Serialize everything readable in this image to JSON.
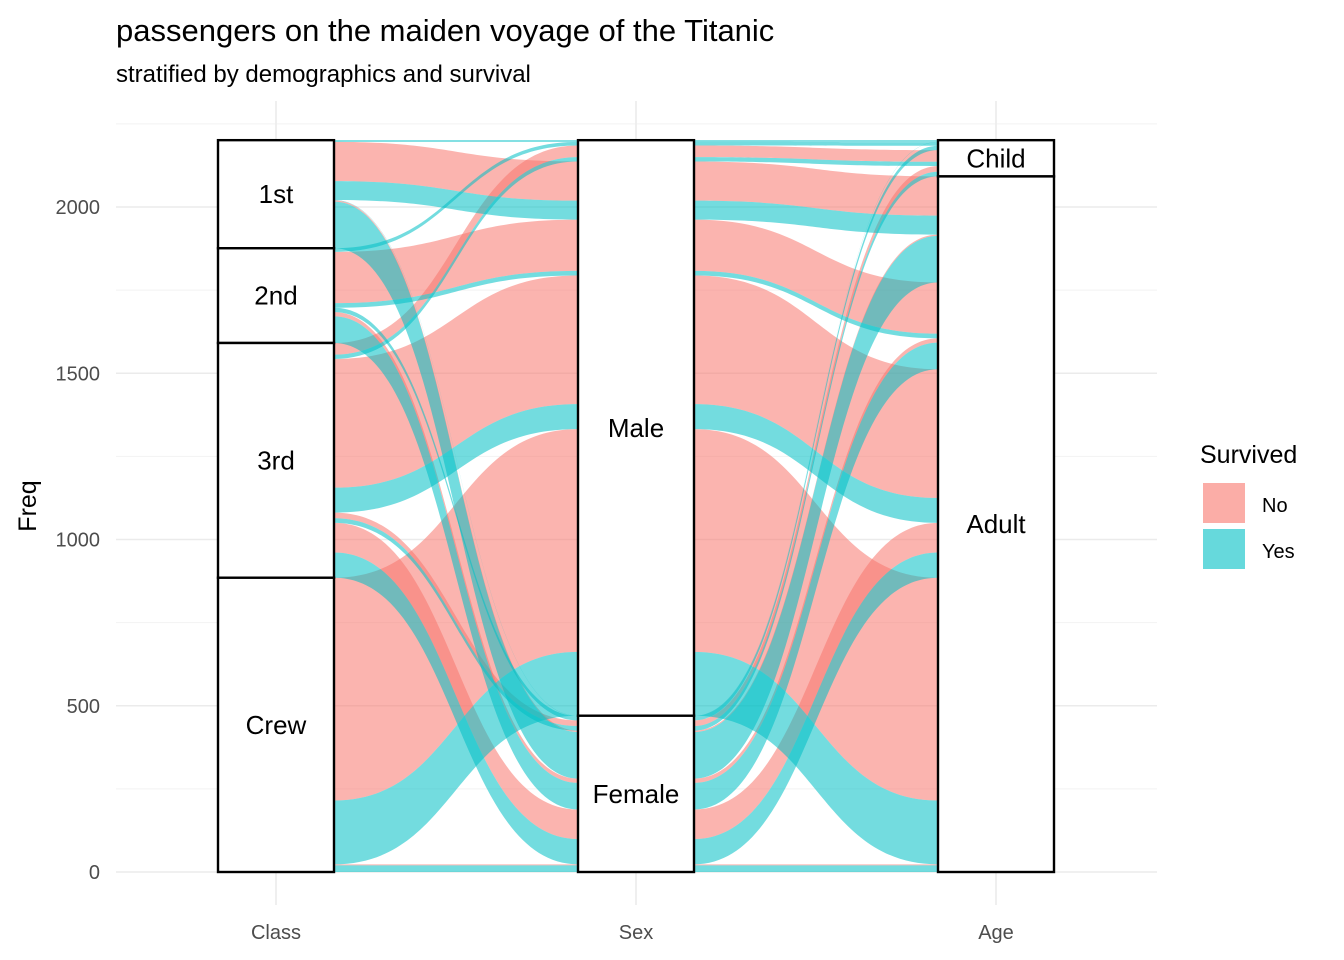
{
  "chart_data": {
    "type": "alluvial",
    "title": "passengers on the maiden voyage of the Titanic",
    "subtitle": "stratified by demographics and survival",
    "ylabel": "Freq",
    "xlabel": "",
    "ylim": [
      0,
      2201
    ],
    "yticks": [
      0,
      500,
      1000,
      1500,
      2000
    ],
    "grid": true,
    "axes": [
      "Class",
      "Sex",
      "Age"
    ],
    "strata": {
      "Class": [
        "1st",
        "2nd",
        "3rd",
        "Crew"
      ],
      "Sex": [
        "Male",
        "Female"
      ],
      "Age": [
        "Child",
        "Adult"
      ]
    },
    "fill_by": "Survived",
    "legend": {
      "title": "Survived",
      "position": "right",
      "entries": [
        {
          "label": "No",
          "color": "#F8766D"
        },
        {
          "label": "Yes",
          "color": "#00BFC4"
        }
      ]
    },
    "flows": [
      {
        "Class": "1st",
        "Sex": "Male",
        "Age": "Child",
        "Survived": "No",
        "Freq": 0
      },
      {
        "Class": "2nd",
        "Sex": "Male",
        "Age": "Child",
        "Survived": "No",
        "Freq": 0
      },
      {
        "Class": "3rd",
        "Sex": "Male",
        "Age": "Child",
        "Survived": "No",
        "Freq": 35
      },
      {
        "Class": "Crew",
        "Sex": "Male",
        "Age": "Child",
        "Survived": "No",
        "Freq": 0
      },
      {
        "Class": "1st",
        "Sex": "Female",
        "Age": "Child",
        "Survived": "No",
        "Freq": 0
      },
      {
        "Class": "2nd",
        "Sex": "Female",
        "Age": "Child",
        "Survived": "No",
        "Freq": 0
      },
      {
        "Class": "3rd",
        "Sex": "Female",
        "Age": "Child",
        "Survived": "No",
        "Freq": 17
      },
      {
        "Class": "Crew",
        "Sex": "Female",
        "Age": "Child",
        "Survived": "No",
        "Freq": 0
      },
      {
        "Class": "1st",
        "Sex": "Male",
        "Age": "Adult",
        "Survived": "No",
        "Freq": 118
      },
      {
        "Class": "2nd",
        "Sex": "Male",
        "Age": "Adult",
        "Survived": "No",
        "Freq": 154
      },
      {
        "Class": "3rd",
        "Sex": "Male",
        "Age": "Adult",
        "Survived": "No",
        "Freq": 387
      },
      {
        "Class": "Crew",
        "Sex": "Male",
        "Age": "Adult",
        "Survived": "No",
        "Freq": 670
      },
      {
        "Class": "1st",
        "Sex": "Female",
        "Age": "Adult",
        "Survived": "No",
        "Freq": 4
      },
      {
        "Class": "2nd",
        "Sex": "Female",
        "Age": "Adult",
        "Survived": "No",
        "Freq": 13
      },
      {
        "Class": "3rd",
        "Sex": "Female",
        "Age": "Adult",
        "Survived": "No",
        "Freq": 89
      },
      {
        "Class": "Crew",
        "Sex": "Female",
        "Age": "Adult",
        "Survived": "No",
        "Freq": 3
      },
      {
        "Class": "1st",
        "Sex": "Male",
        "Age": "Child",
        "Survived": "Yes",
        "Freq": 5
      },
      {
        "Class": "2nd",
        "Sex": "Male",
        "Age": "Child",
        "Survived": "Yes",
        "Freq": 11
      },
      {
        "Class": "3rd",
        "Sex": "Male",
        "Age": "Child",
        "Survived": "Yes",
        "Freq": 13
      },
      {
        "Class": "Crew",
        "Sex": "Male",
        "Age": "Child",
        "Survived": "Yes",
        "Freq": 0
      },
      {
        "Class": "1st",
        "Sex": "Female",
        "Age": "Child",
        "Survived": "Yes",
        "Freq": 1
      },
      {
        "Class": "2nd",
        "Sex": "Female",
        "Age": "Child",
        "Survived": "Yes",
        "Freq": 13
      },
      {
        "Class": "3rd",
        "Sex": "Female",
        "Age": "Child",
        "Survived": "Yes",
        "Freq": 14
      },
      {
        "Class": "Crew",
        "Sex": "Female",
        "Age": "Child",
        "Survived": "Yes",
        "Freq": 0
      },
      {
        "Class": "1st",
        "Sex": "Male",
        "Age": "Adult",
        "Survived": "Yes",
        "Freq": 57
      },
      {
        "Class": "2nd",
        "Sex": "Male",
        "Age": "Adult",
        "Survived": "Yes",
        "Freq": 14
      },
      {
        "Class": "3rd",
        "Sex": "Male",
        "Age": "Adult",
        "Survived": "Yes",
        "Freq": 75
      },
      {
        "Class": "Crew",
        "Sex": "Male",
        "Age": "Adult",
        "Survived": "Yes",
        "Freq": 192
      },
      {
        "Class": "1st",
        "Sex": "Female",
        "Age": "Adult",
        "Survived": "Yes",
        "Freq": 140
      },
      {
        "Class": "2nd",
        "Sex": "Female",
        "Age": "Adult",
        "Survived": "Yes",
        "Freq": 80
      },
      {
        "Class": "3rd",
        "Sex": "Female",
        "Age": "Adult",
        "Survived": "Yes",
        "Freq": 76
      },
      {
        "Class": "Crew",
        "Sex": "Female",
        "Age": "Adult",
        "Survived": "Yes",
        "Freq": 20
      }
    ]
  }
}
